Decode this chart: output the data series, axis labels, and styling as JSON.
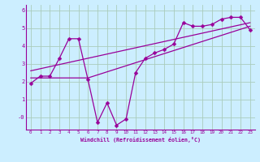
{
  "xlabel": "Windchill (Refroidissement éolien,°C)",
  "bg_color": "#cceeff",
  "line_color": "#990099",
  "grid_color": "#aaccbb",
  "xlim": [
    -0.5,
    23.5
  ],
  "ylim": [
    -0.7,
    6.3
  ],
  "yticks": [
    0,
    1,
    2,
    3,
    4,
    5,
    6
  ],
  "ytick_labels": [
    "-0",
    "1",
    "2",
    "3",
    "4",
    "5",
    "6"
  ],
  "xticks": [
    0,
    1,
    2,
    3,
    4,
    5,
    6,
    7,
    8,
    9,
    10,
    11,
    12,
    13,
    14,
    15,
    16,
    17,
    18,
    19,
    20,
    21,
    22,
    23
  ],
  "series1_x": [
    0,
    1,
    2,
    3,
    4,
    5,
    6,
    7,
    8,
    9,
    10,
    11,
    12,
    13,
    14,
    15,
    16,
    17,
    18,
    19,
    20,
    21,
    22,
    23
  ],
  "series1_y": [
    1.9,
    2.3,
    2.3,
    3.3,
    4.4,
    4.4,
    2.1,
    -0.3,
    0.8,
    -0.45,
    -0.1,
    2.5,
    3.3,
    3.6,
    3.8,
    4.1,
    5.3,
    5.1,
    5.1,
    5.2,
    5.5,
    5.6,
    5.6,
    4.9
  ],
  "series2_x": [
    0,
    6,
    23
  ],
  "series2_y": [
    2.2,
    2.2,
    5.1
  ],
  "series3_x": [
    0,
    23
  ],
  "series3_y": [
    2.6,
    5.3
  ],
  "markersize": 2.5,
  "linewidth": 0.9
}
